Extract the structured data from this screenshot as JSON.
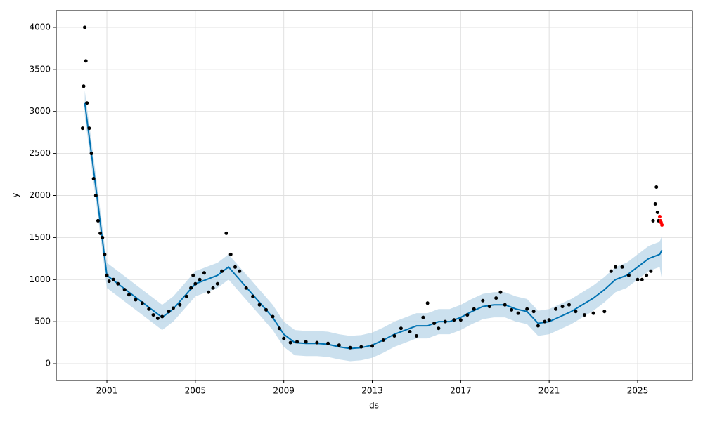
{
  "chart_data": {
    "type": "forecast",
    "xlabel": "ds",
    "ylabel": "y",
    "xlim": [
      1998.71,
      2027.48
    ],
    "ylim": [
      -200,
      4200
    ],
    "xticks": [
      2001,
      2005,
      2009,
      2013,
      2017,
      2021,
      2025
    ],
    "yticks": [
      0,
      500,
      1000,
      1500,
      2000,
      2500,
      3000,
      3500,
      4000
    ],
    "grid": true,
    "series": [
      {
        "type": "line",
        "color": "#0072b2",
        "band_color": "#a9cce3",
        "x": [
          2000.0,
          2000.5,
          2001.0,
          2001.5,
          2002.0,
          2002.5,
          2003.0,
          2003.5,
          2004.0,
          2004.5,
          2005.0,
          2005.5,
          2006.0,
          2006.5,
          2007.0,
          2007.5,
          2008.0,
          2008.5,
          2009.0,
          2009.5,
          2010.0,
          2010.5,
          2011.0,
          2011.5,
          2012.0,
          2012.5,
          2013.0,
          2013.5,
          2014.0,
          2014.5,
          2015.0,
          2015.5,
          2016.0,
          2016.5,
          2017.0,
          2017.5,
          2018.0,
          2018.5,
          2019.0,
          2019.5,
          2020.0,
          2020.5,
          2021.0,
          2021.5,
          2022.0,
          2022.5,
          2023.0,
          2023.5,
          2024.0,
          2024.5,
          2025.0,
          2025.5,
          2026.0,
          2026.1
        ],
        "values": [
          3100,
          2100,
          1050,
          950,
          850,
          750,
          650,
          550,
          650,
          800,
          950,
          1000,
          1050,
          1150,
          1000,
          850,
          700,
          550,
          350,
          250,
          240,
          240,
          230,
          200,
          180,
          190,
          220,
          280,
          350,
          400,
          450,
          450,
          500,
          500,
          550,
          620,
          680,
          700,
          700,
          650,
          620,
          480,
          500,
          560,
          620,
          700,
          780,
          880,
          1000,
          1050,
          1150,
          1250,
          1300,
          1350
        ],
        "lower": [
          2950,
          1950,
          900,
          800,
          700,
          600,
          500,
          400,
          500,
          650,
          800,
          850,
          900,
          1000,
          850,
          700,
          550,
          400,
          200,
          100,
          90,
          90,
          80,
          50,
          30,
          40,
          70,
          130,
          200,
          250,
          300,
          300,
          350,
          350,
          400,
          470,
          530,
          550,
          550,
          500,
          470,
          330,
          350,
          410,
          470,
          550,
          630,
          730,
          850,
          900,
          1000,
          1100,
          1150,
          1000
        ],
        "upper": [
          3250,
          2250,
          1200,
          1100,
          1000,
          900,
          800,
          700,
          800,
          950,
          1100,
          1150,
          1200,
          1300,
          1150,
          1000,
          850,
          700,
          500,
          400,
          390,
          390,
          380,
          350,
          330,
          340,
          370,
          430,
          500,
          550,
          600,
          600,
          650,
          650,
          700,
          770,
          830,
          850,
          850,
          800,
          770,
          630,
          650,
          710,
          770,
          850,
          930,
          1030,
          1150,
          1200,
          1300,
          1400,
          1450,
          1520
        ]
      },
      {
        "type": "scatter",
        "color": "#000000",
        "x": [
          1999.9,
          1999.95,
          2000.0,
          2000.05,
          2000.1,
          2000.2,
          2000.3,
          2000.4,
          2000.5,
          2000.6,
          2000.7,
          2000.8,
          2000.9,
          2001.0,
          2001.1,
          2001.3,
          2001.5,
          2001.8,
          2002.0,
          2002.3,
          2002.6,
          2002.9,
          2003.1,
          2003.3,
          2003.5,
          2003.8,
          2004.0,
          2004.3,
          2004.6,
          2004.8,
          2004.9,
          2005.0,
          2005.2,
          2005.4,
          2005.6,
          2005.8,
          2006.0,
          2006.2,
          2006.4,
          2006.6,
          2006.8,
          2007.0,
          2007.3,
          2007.6,
          2007.9,
          2008.2,
          2008.5,
          2008.8,
          2009.0,
          2009.3,
          2009.6,
          2010.0,
          2010.5,
          2011.0,
          2011.5,
          2012.0,
          2012.5,
          2013.0,
          2013.5,
          2014.0,
          2014.3,
          2014.7,
          2015.0,
          2015.3,
          2015.5,
          2015.8,
          2016.0,
          2016.3,
          2016.7,
          2017.0,
          2017.3,
          2017.6,
          2018.0,
          2018.3,
          2018.6,
          2018.8,
          2019.0,
          2019.3,
          2019.6,
          2020.0,
          2020.3,
          2020.5,
          2020.8,
          2021.0,
          2021.3,
          2021.6,
          2021.9,
          2022.2,
          2022.6,
          2023.0,
          2023.5,
          2023.8,
          2024.0,
          2024.3,
          2024.6,
          2025.0,
          2025.2,
          2025.4,
          2025.6,
          2025.7,
          2025.8,
          2025.85,
          2025.9,
          2025.95
        ],
        "values": [
          2800,
          3300,
          4000,
          3600,
          3100,
          2800,
          2500,
          2200,
          2000,
          1700,
          1550,
          1500,
          1300,
          1050,
          980,
          1000,
          950,
          880,
          820,
          760,
          720,
          650,
          580,
          540,
          560,
          620,
          660,
          700,
          800,
          900,
          1050,
          950,
          1000,
          1080,
          850,
          900,
          950,
          1100,
          1550,
          1300,
          1150,
          1100,
          900,
          800,
          700,
          640,
          560,
          420,
          300,
          250,
          260,
          260,
          250,
          240,
          220,
          190,
          200,
          210,
          280,
          330,
          420,
          380,
          330,
          550,
          720,
          480,
          420,
          500,
          520,
          520,
          580,
          650,
          750,
          680,
          780,
          850,
          700,
          640,
          600,
          650,
          620,
          450,
          500,
          520,
          650,
          680,
          700,
          620,
          580,
          600,
          620,
          1100,
          1150,
          1150,
          1050,
          1000,
          1000,
          1050,
          1100,
          1700,
          1900,
          2100,
          1800,
          1700
        ]
      },
      {
        "type": "scatter",
        "color": "#ff0000",
        "x": [
          2026.0,
          2026.03,
          2026.06,
          2026.1
        ],
        "values": [
          1750,
          1700,
          1680,
          1650
        ]
      }
    ]
  }
}
